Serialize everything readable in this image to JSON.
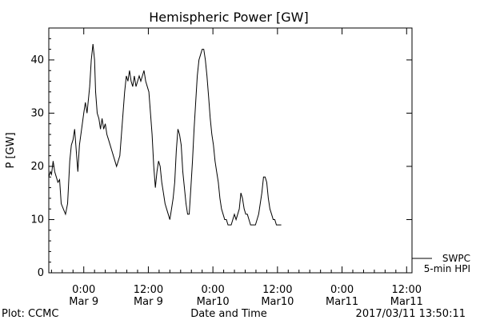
{
  "figure": {
    "footer_left": "Plot: CCMC",
    "footer_center": "Date and Time",
    "footer_right": "2017/03/11 13:50:11"
  },
  "chart_data": {
    "type": "line",
    "title": "Hemispheric Power [GW]",
    "ylabel": "P [GW]",
    "xlabel": "Date and Time",
    "ylim": [
      0,
      46
    ],
    "xlim": [
      -6.5,
      61
    ],
    "y_ticks": [
      0,
      10,
      20,
      30,
      40
    ],
    "x_ticks": [
      {
        "x": 0,
        "label": "0:00",
        "sublabel": "Mar 9"
      },
      {
        "x": 12,
        "label": "12:00",
        "sublabel": "Mar 9"
      },
      {
        "x": 24,
        "label": "0:00",
        "sublabel": "Mar10"
      },
      {
        "x": 36,
        "label": "12:00",
        "sublabel": "Mar10"
      },
      {
        "x": 48,
        "label": "0:00",
        "sublabel": "Mar11"
      },
      {
        "x": 60,
        "label": "12:00",
        "sublabel": "Mar11"
      }
    ],
    "legend": {
      "position": "lower-right",
      "entries": [
        "SWPC",
        "5-min HPI"
      ]
    },
    "series": [
      {
        "name": "SWPC",
        "color": "#000000",
        "points": [
          [
            -6.5,
            18
          ],
          [
            -6.2,
            19
          ],
          [
            -6.0,
            18.5
          ],
          [
            -5.7,
            21
          ],
          [
            -5.4,
            19
          ],
          [
            -5.1,
            18
          ],
          [
            -4.8,
            17
          ],
          [
            -4.5,
            17.5
          ],
          [
            -4.2,
            13
          ],
          [
            -3.8,
            12
          ],
          [
            -3.4,
            11
          ],
          [
            -3.0,
            13
          ],
          [
            -2.6,
            21
          ],
          [
            -2.3,
            24
          ],
          [
            -2.0,
            25
          ],
          [
            -1.7,
            27
          ],
          [
            -1.4,
            23
          ],
          [
            -1.1,
            19
          ],
          [
            -0.8,
            24
          ],
          [
            -0.4,
            27
          ],
          [
            0.0,
            30
          ],
          [
            0.3,
            32
          ],
          [
            0.6,
            30
          ],
          [
            0.9,
            33
          ],
          [
            1.1,
            35
          ],
          [
            1.4,
            40
          ],
          [
            1.7,
            43
          ],
          [
            2.0,
            40
          ],
          [
            2.2,
            34
          ],
          [
            2.5,
            30
          ],
          [
            2.8,
            29
          ],
          [
            3.1,
            27
          ],
          [
            3.4,
            29
          ],
          [
            3.7,
            27
          ],
          [
            4.0,
            28
          ],
          [
            4.3,
            26
          ],
          [
            4.6,
            25
          ],
          [
            4.9,
            24
          ],
          [
            5.2,
            23
          ],
          [
            5.5,
            22
          ],
          [
            5.8,
            21
          ],
          [
            6.1,
            20
          ],
          [
            6.4,
            21
          ],
          [
            6.7,
            22
          ],
          [
            7.0,
            26
          ],
          [
            7.3,
            30
          ],
          [
            7.6,
            34
          ],
          [
            7.9,
            37
          ],
          [
            8.2,
            36
          ],
          [
            8.5,
            38
          ],
          [
            8.8,
            36
          ],
          [
            9.1,
            35
          ],
          [
            9.4,
            37
          ],
          [
            9.7,
            35
          ],
          [
            10.0,
            36
          ],
          [
            10.3,
            37
          ],
          [
            10.6,
            36
          ],
          [
            10.9,
            37
          ],
          [
            11.2,
            38
          ],
          [
            11.5,
            36
          ],
          [
            11.8,
            35
          ],
          [
            12.1,
            34
          ],
          [
            12.4,
            30
          ],
          [
            12.7,
            26
          ],
          [
            13.0,
            20
          ],
          [
            13.3,
            16
          ],
          [
            13.6,
            19
          ],
          [
            13.9,
            21
          ],
          [
            14.2,
            20
          ],
          [
            14.5,
            17
          ],
          [
            14.8,
            15
          ],
          [
            15.1,
            13
          ],
          [
            15.4,
            12
          ],
          [
            15.7,
            11
          ],
          [
            16.0,
            10
          ],
          [
            16.3,
            12
          ],
          [
            16.6,
            14
          ],
          [
            16.9,
            17
          ],
          [
            17.2,
            23
          ],
          [
            17.5,
            27
          ],
          [
            17.8,
            26
          ],
          [
            18.1,
            24
          ],
          [
            18.4,
            19
          ],
          [
            18.7,
            16
          ],
          [
            19.0,
            13
          ],
          [
            19.3,
            11
          ],
          [
            19.6,
            11
          ],
          [
            19.9,
            16
          ],
          [
            20.2,
            21
          ],
          [
            20.5,
            27
          ],
          [
            20.8,
            32
          ],
          [
            21.1,
            37
          ],
          [
            21.4,
            40
          ],
          [
            21.7,
            41
          ],
          [
            22.0,
            42
          ],
          [
            22.3,
            42
          ],
          [
            22.6,
            40
          ],
          [
            22.9,
            37
          ],
          [
            23.2,
            33
          ],
          [
            23.5,
            29
          ],
          [
            23.8,
            26
          ],
          [
            24.1,
            24
          ],
          [
            24.4,
            21
          ],
          [
            24.7,
            19
          ],
          [
            25.0,
            17
          ],
          [
            25.3,
            14
          ],
          [
            25.6,
            12
          ],
          [
            25.9,
            11
          ],
          [
            26.2,
            10
          ],
          [
            26.5,
            10
          ],
          [
            26.8,
            9
          ],
          [
            27.1,
            9
          ],
          [
            27.4,
            9
          ],
          [
            27.7,
            10
          ],
          [
            28.0,
            11
          ],
          [
            28.3,
            10
          ],
          [
            28.6,
            11
          ],
          [
            28.9,
            12
          ],
          [
            29.2,
            15
          ],
          [
            29.5,
            14
          ],
          [
            29.8,
            12
          ],
          [
            30.1,
            11
          ],
          [
            30.4,
            11
          ],
          [
            30.7,
            10
          ],
          [
            31.0,
            9
          ],
          [
            31.3,
            9
          ],
          [
            31.6,
            9
          ],
          [
            31.9,
            9
          ],
          [
            32.2,
            10
          ],
          [
            32.5,
            11
          ],
          [
            32.8,
            13
          ],
          [
            33.1,
            15
          ],
          [
            33.4,
            18
          ],
          [
            33.7,
            18
          ],
          [
            34.0,
            17
          ],
          [
            34.3,
            14
          ],
          [
            34.6,
            12
          ],
          [
            34.9,
            11
          ],
          [
            35.2,
            10
          ],
          [
            35.5,
            10
          ],
          [
            35.8,
            9
          ],
          [
            36.1,
            9
          ],
          [
            36.4,
            9
          ],
          [
            36.7,
            9
          ]
        ]
      }
    ]
  }
}
